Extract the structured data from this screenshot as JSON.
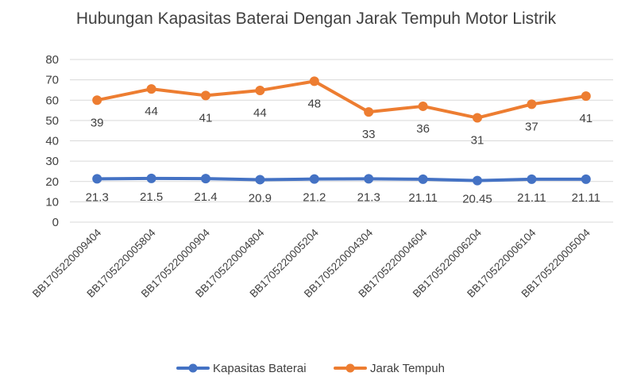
{
  "chart_data": {
    "type": "line",
    "title": "Hubungan Kapasitas Baterai Dengan Jarak Tempuh Motor Listrik",
    "categories": [
      "BB1705220009404",
      "BB1705220005804",
      "BB1705220000904",
      "BB1705220004804",
      "BB1705220005204",
      "BB1705220004304",
      "BB1705220004604",
      "BB1705220006204",
      "BB1705220006104",
      "BB1705220005004"
    ],
    "ylim": [
      0,
      80
    ],
    "yticks": [
      0,
      10,
      20,
      30,
      40,
      50,
      60,
      70,
      80
    ],
    "grid": true,
    "legend_position": "bottom",
    "series": [
      {
        "name": "Kapasitas Baterai",
        "color": "#4472C4",
        "values": [
          21.3,
          21.5,
          21.4,
          20.9,
          21.2,
          21.3,
          21.11,
          20.45,
          21.11,
          21.11
        ],
        "data_labels": [
          "21.3",
          "21.5",
          "21.4",
          "20.9",
          "21.2",
          "21.3",
          "21.11",
          "20.45",
          "21.11",
          "21.11"
        ]
      },
      {
        "name": "Jarak Tempuh",
        "color": "#ED7D31",
        "values": [
          60,
          65.5,
          62.3,
          64.8,
          69.3,
          54.2,
          57,
          51.3,
          58,
          62
        ],
        "data_labels": [
          "39",
          "44",
          "41",
          "44",
          "48",
          "33",
          "36",
          "31",
          "37",
          "41"
        ]
      }
    ]
  }
}
